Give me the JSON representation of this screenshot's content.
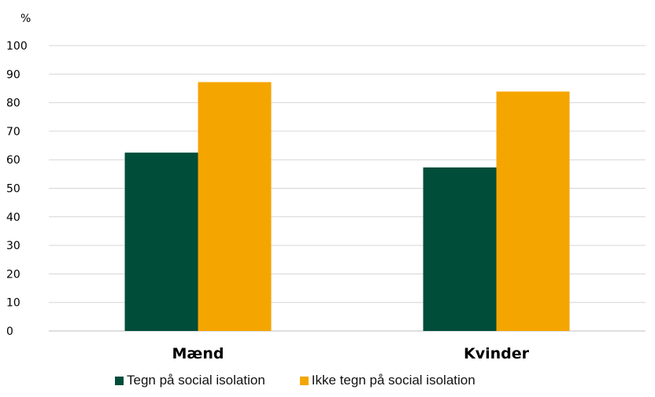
{
  "chart_data": {
    "type": "bar",
    "title": "",
    "xlabel": "",
    "ylabel": "%",
    "ylim": [
      0,
      100
    ],
    "yticks": [
      0,
      10,
      20,
      30,
      40,
      50,
      60,
      70,
      80,
      90,
      100
    ],
    "grid": true,
    "legend_position": "bottom",
    "categories": [
      "Mænd",
      "Kvinder"
    ],
    "series": [
      {
        "name": "Tegn på social isolation",
        "color": "#004d3a",
        "values": [
          62.5,
          57.3
        ]
      },
      {
        "name": "Ikke tegn på social isolation",
        "color": "#f5a500",
        "values": [
          87.2,
          83.9
        ]
      }
    ]
  }
}
